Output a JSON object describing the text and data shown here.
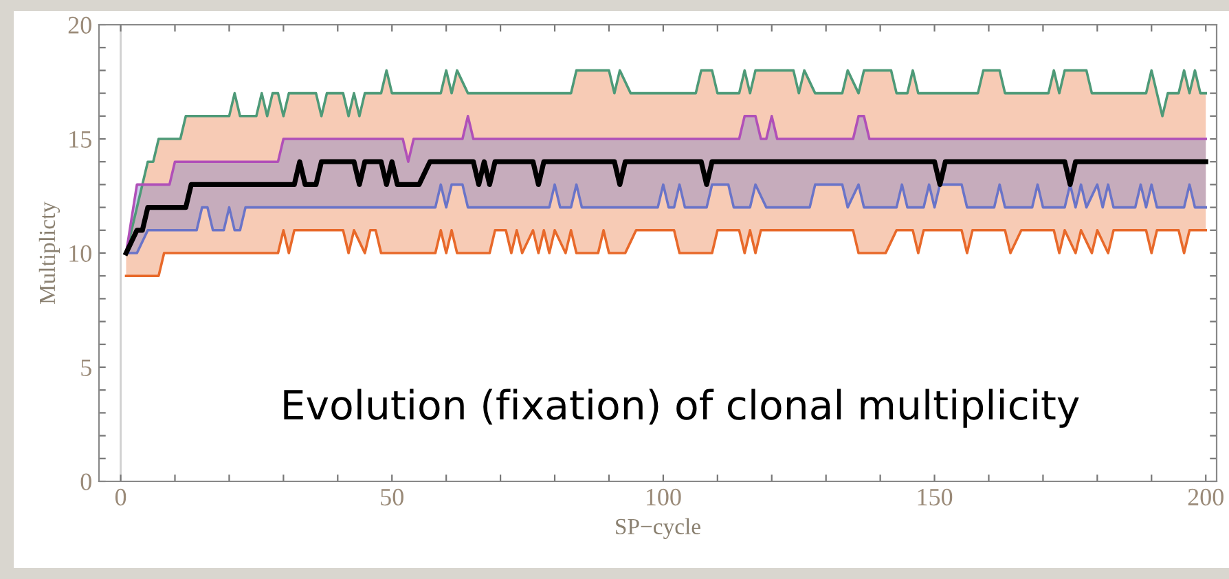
{
  "chart_data": {
    "type": "line",
    "xlabel": "SP−cycle",
    "ylabel": "Multiplicty",
    "annotations": [
      "Evolution (fixation) of clonal multiplicity"
    ],
    "xlim": [
      -4,
      202
    ],
    "ylim": [
      0,
      20
    ],
    "xticks": [
      0,
      {
        "value": 10,
        "label": null
      },
      {
        "value": 20,
        "label": null
      },
      {
        "value": 30,
        "label": null
      },
      {
        "value": 40,
        "label": null
      },
      50,
      {
        "value": 60,
        "label": null
      },
      {
        "value": 70,
        "label": null
      },
      {
        "value": 80,
        "label": null
      },
      {
        "value": 90,
        "label": null
      },
      100,
      {
        "value": 110,
        "label": null
      },
      {
        "value": 120,
        "label": null
      },
      {
        "value": 130,
        "label": null
      },
      {
        "value": 140,
        "label": null
      },
      150,
      {
        "value": 160,
        "label": null
      },
      {
        "value": 170,
        "label": null
      },
      {
        "value": 180,
        "label": null
      },
      {
        "value": 190,
        "label": null
      },
      200
    ],
    "yticks": [
      0,
      {
        "value": 1,
        "label": null
      },
      {
        "value": 2,
        "label": null
      },
      {
        "value": 3,
        "label": null
      },
      {
        "value": 4,
        "label": null
      },
      5,
      {
        "value": 6,
        "label": null
      },
      {
        "value": 7,
        "label": null
      },
      {
        "value": 8,
        "label": null
      },
      {
        "value": 9,
        "label": null
      },
      10,
      {
        "value": 11,
        "label": null
      },
      {
        "value": 12,
        "label": null
      },
      {
        "value": 13,
        "label": null
      },
      {
        "value": 14,
        "label": null
      },
      15,
      {
        "value": 16,
        "label": null
      },
      {
        "value": 17,
        "label": null
      },
      {
        "value": 18,
        "label": null
      },
      {
        "value": 19,
        "label": null
      },
      20
    ],
    "ref_lines": [
      {
        "axis": "x",
        "value": 0,
        "label": null,
        "color": "#d0d0d0"
      }
    ],
    "grid": false,
    "legend": false,
    "marker": "none",
    "line_style": "solid",
    "series": [
      {
        "color": "#4e9a78",
        "x": [
          1,
          5,
          6,
          7,
          11,
          12,
          20,
          21,
          22,
          25,
          26,
          27,
          28,
          29,
          30,
          31,
          36,
          37,
          38,
          41,
          42,
          43,
          44,
          45,
          48,
          49,
          50,
          59,
          60,
          61,
          62,
          64,
          83,
          84,
          90,
          91,
          92,
          94,
          106,
          107,
          109,
          110,
          114,
          115,
          116,
          117,
          124,
          125,
          126,
          128,
          133,
          134,
          136,
          137,
          142,
          143,
          145,
          146,
          147,
          158,
          159,
          162,
          163,
          171,
          172,
          173,
          174,
          178,
          179,
          189,
          190,
          192,
          193,
          195,
          196,
          197,
          198,
          199,
          200
        ],
        "values": [
          10,
          14,
          14,
          15,
          15,
          16,
          16,
          17,
          16,
          16,
          17,
          16,
          17,
          17,
          16,
          17,
          17,
          16,
          17,
          17,
          16,
          17,
          16,
          17,
          17,
          18,
          17,
          17,
          18,
          17,
          18,
          17,
          17,
          18,
          18,
          17,
          18,
          17,
          17,
          18,
          18,
          17,
          17,
          18,
          17,
          18,
          18,
          17,
          18,
          17,
          17,
          18,
          17,
          18,
          18,
          17,
          17,
          18,
          17,
          17,
          18,
          18,
          17,
          17,
          18,
          17,
          18,
          18,
          17,
          17,
          18,
          16,
          17,
          17,
          18,
          17,
          18,
          17,
          17
        ]
      },
      {
        "color": "#b050b8",
        "x": [
          1,
          3,
          9,
          10,
          29,
          30,
          52,
          53,
          54,
          63,
          64,
          65,
          114,
          115,
          117,
          118,
          119,
          120,
          121,
          135,
          136,
          137,
          138,
          200
        ],
        "values": [
          10,
          13,
          13,
          14,
          14,
          15,
          15,
          14,
          15,
          15,
          16,
          15,
          15,
          16,
          16,
          15,
          15,
          16,
          15,
          15,
          16,
          16,
          15,
          15
        ]
      },
      {
        "color": "#000000",
        "x": [
          1,
          3,
          4,
          5,
          12,
          13,
          32,
          33,
          34,
          36,
          37,
          43,
          44,
          45,
          48,
          49,
          50,
          51,
          55,
          57,
          65,
          66,
          67,
          68,
          69,
          76,
          77,
          78,
          91,
          92,
          93,
          107,
          108,
          109,
          150,
          151,
          152,
          174,
          175,
          176,
          200
        ],
        "values": [
          10,
          11,
          11,
          12,
          12,
          13,
          13,
          14,
          13,
          13,
          14,
          14,
          13,
          14,
          14,
          13,
          14,
          13,
          13,
          14,
          14,
          13,
          14,
          13,
          14,
          14,
          13,
          14,
          14,
          13,
          14,
          14,
          13,
          14,
          14,
          13,
          14,
          14,
          13,
          14,
          14
        ]
      },
      {
        "color": "#e8692a",
        "x": [
          1,
          5,
          6,
          7,
          8,
          11,
          12,
          20,
          21,
          22,
          25,
          26,
          27,
          28,
          29,
          30,
          31,
          32,
          36,
          37,
          38,
          41,
          42,
          43,
          44,
          45,
          46,
          47,
          48,
          49,
          50,
          58,
          59,
          60,
          61,
          62,
          64,
          68,
          69,
          71,
          72,
          73,
          74,
          76,
          77,
          78,
          79,
          80,
          82,
          83,
          84,
          88,
          89,
          90,
          91,
          92,
          93,
          94,
          95,
          102,
          103,
          106,
          107,
          109,
          110,
          114,
          115,
          116,
          117,
          118,
          124,
          125,
          126,
          128,
          133,
          134,
          135,
          136,
          137,
          141,
          142,
          143,
          145,
          146,
          147,
          148,
          155,
          156,
          157,
          158,
          159,
          162,
          163,
          164,
          166,
          171,
          172,
          173,
          174,
          176,
          177,
          178,
          179,
          180,
          182,
          183,
          189,
          190,
          191,
          192,
          193,
          195,
          196,
          197,
          198,
          199,
          200
        ],
        "lower": [
          9,
          9,
          9,
          9,
          10,
          10,
          10,
          10,
          10,
          10,
          10,
          10,
          10,
          10,
          10,
          11,
          10,
          11,
          11,
          11,
          11,
          11,
          10,
          11,
          10.5,
          10,
          11,
          11,
          10,
          10,
          10,
          10,
          11,
          10,
          11,
          10,
          10,
          10,
          11,
          11,
          10,
          11,
          10,
          11,
          10,
          11,
          10,
          11,
          10,
          11,
          10,
          10,
          11,
          10,
          10,
          10,
          10,
          10.5,
          11,
          11,
          10,
          10,
          10,
          10,
          11,
          11,
          10,
          11,
          10,
          11,
          11,
          11,
          11,
          11,
          11,
          11,
          11,
          10,
          10,
          10,
          10.5,
          11,
          11,
          11,
          10,
          11,
          11,
          10,
          11,
          11,
          11,
          11,
          11,
          10,
          11,
          11,
          11,
          10,
          11,
          10,
          11,
          10.5,
          10,
          11,
          10,
          11,
          11,
          10,
          11,
          11,
          11,
          11,
          10,
          11,
          11,
          11,
          11
        ],
        "upper": [
          10,
          14,
          14,
          15,
          15,
          15,
          16,
          16,
          17,
          16,
          16,
          17,
          16,
          17,
          17,
          16,
          17,
          17,
          17,
          16,
          17,
          17,
          16,
          17,
          16,
          17,
          17,
          17,
          17,
          18,
          17,
          17,
          17,
          18,
          17,
          18,
          17,
          17,
          17,
          17,
          17,
          17,
          17,
          17,
          17,
          17,
          17,
          17,
          17,
          17,
          18,
          18,
          18,
          18,
          17,
          18,
          17.5,
          17,
          17,
          17,
          17,
          17,
          18,
          18,
          17,
          17,
          18,
          17,
          18,
          18,
          18,
          17,
          18,
          17,
          17,
          18,
          17.5,
          17,
          18,
          18,
          18,
          17,
          17,
          18,
          17,
          17,
          17,
          17,
          17,
          17,
          18,
          18,
          17,
          17,
          17,
          17,
          18,
          17,
          18,
          18,
          18,
          18,
          17,
          17,
          17,
          17,
          17,
          18,
          17,
          16,
          17,
          17,
          18,
          17,
          18,
          17,
          17
        ],
        "values": [
          9,
          9,
          9,
          9,
          10,
          10,
          10,
          10,
          10,
          10,
          10,
          10,
          10,
          10,
          10,
          11,
          10,
          11,
          11,
          11,
          11,
          11,
          10,
          11,
          10.5,
          10,
          11,
          11,
          10,
          10,
          10,
          10,
          11,
          10,
          11,
          10,
          10,
          10,
          11,
          11,
          10,
          11,
          10,
          11,
          10,
          11,
          10,
          11,
          10,
          11,
          10,
          10,
          11,
          10,
          10,
          10,
          10,
          10.5,
          11,
          11,
          10,
          10,
          10,
          10,
          11,
          11,
          10,
          11,
          10,
          11,
          11,
          11,
          11,
          11,
          11,
          11,
          11,
          10,
          10,
          10,
          10.5,
          11,
          11,
          11,
          10,
          11,
          11,
          10,
          11,
          11,
          11,
          11,
          11,
          10,
          11,
          11,
          11,
          10,
          11,
          10,
          11,
          10.5,
          10,
          11,
          10,
          11,
          11,
          10,
          11,
          11,
          11,
          11,
          10,
          11,
          11,
          11,
          11
        ]
      },
      {
        "color": "#6a74c8",
        "x": [
          1,
          3,
          5,
          9,
          10,
          14,
          15,
          16,
          17,
          19,
          20,
          21,
          22,
          23,
          29,
          30,
          52,
          53,
          54,
          58,
          59,
          60,
          61,
          63,
          64,
          65,
          79,
          80,
          81,
          83,
          84,
          85,
          99,
          100,
          101,
          102,
          103,
          104,
          108,
          109,
          112,
          113,
          114,
          115,
          116,
          117,
          118,
          119,
          120,
          121,
          127,
          128,
          133,
          134,
          135,
          136,
          137,
          138,
          143,
          144,
          145,
          148,
          149,
          150,
          151,
          155,
          156,
          161,
          162,
          163,
          168,
          169,
          170,
          174,
          175,
          176,
          177,
          178,
          180,
          181,
          182,
          183,
          187,
          188,
          189,
          190,
          191,
          196,
          197,
          198,
          200
        ],
        "lower": [
          10,
          10,
          11,
          11,
          11,
          11,
          12,
          12,
          11,
          11,
          12,
          11,
          11,
          12,
          12,
          12,
          12,
          12,
          12,
          12,
          13,
          12,
          13,
          13,
          12,
          12,
          12,
          13,
          12,
          12,
          13,
          12,
          12,
          13,
          12,
          12,
          13,
          12,
          12,
          13,
          13,
          12,
          12,
          12,
          12,
          13,
          12.5,
          12,
          12,
          12,
          12,
          13,
          13,
          12,
          12.5,
          13,
          12,
          12,
          12,
          13,
          12,
          12,
          13,
          12,
          13,
          13,
          12,
          12,
          13,
          12,
          12,
          13,
          12,
          12,
          13,
          12,
          13,
          12,
          13,
          12,
          13,
          12,
          12,
          13,
          12,
          13,
          12,
          12,
          13,
          12,
          12
        ],
        "upper": [
          10,
          13,
          13,
          13,
          14,
          14,
          14,
          14,
          14,
          14,
          14,
          14,
          14,
          14,
          14,
          15,
          15,
          14,
          15,
          15,
          15,
          15,
          15,
          15,
          16,
          15,
          15,
          15,
          15,
          15,
          15,
          15,
          15,
          15,
          15,
          15,
          15,
          15,
          15,
          15,
          15,
          15,
          15,
          16,
          16,
          16,
          15,
          15,
          16,
          15,
          15,
          15,
          15,
          15,
          15,
          16,
          16,
          15,
          15,
          15,
          15,
          15,
          15,
          15,
          15,
          15,
          15,
          15,
          15,
          15,
          15,
          15,
          15,
          15,
          15,
          15,
          15,
          15,
          15,
          15,
          15,
          15,
          15,
          15,
          15,
          15,
          15,
          15,
          15,
          15,
          15
        ],
        "values": [
          10,
          10,
          11,
          11,
          11,
          11,
          12,
          12,
          11,
          11,
          12,
          11,
          11,
          12,
          12,
          12,
          12,
          12,
          12,
          12,
          13,
          12,
          13,
          13,
          12,
          12,
          12,
          13,
          12,
          12,
          13,
          12,
          12,
          13,
          12,
          12,
          13,
          12,
          12,
          13,
          13,
          12,
          12,
          12,
          12,
          13,
          12.5,
          12,
          12,
          12,
          12,
          13,
          13,
          12,
          12.5,
          13,
          12,
          12,
          12,
          13,
          12,
          12,
          13,
          12,
          13,
          13,
          12,
          12,
          13,
          12,
          12,
          13,
          12,
          12,
          13,
          12,
          13,
          12,
          13,
          12,
          13,
          12,
          12,
          13,
          12,
          13,
          12,
          12,
          13,
          12,
          12
        ]
      }
    ]
  }
}
